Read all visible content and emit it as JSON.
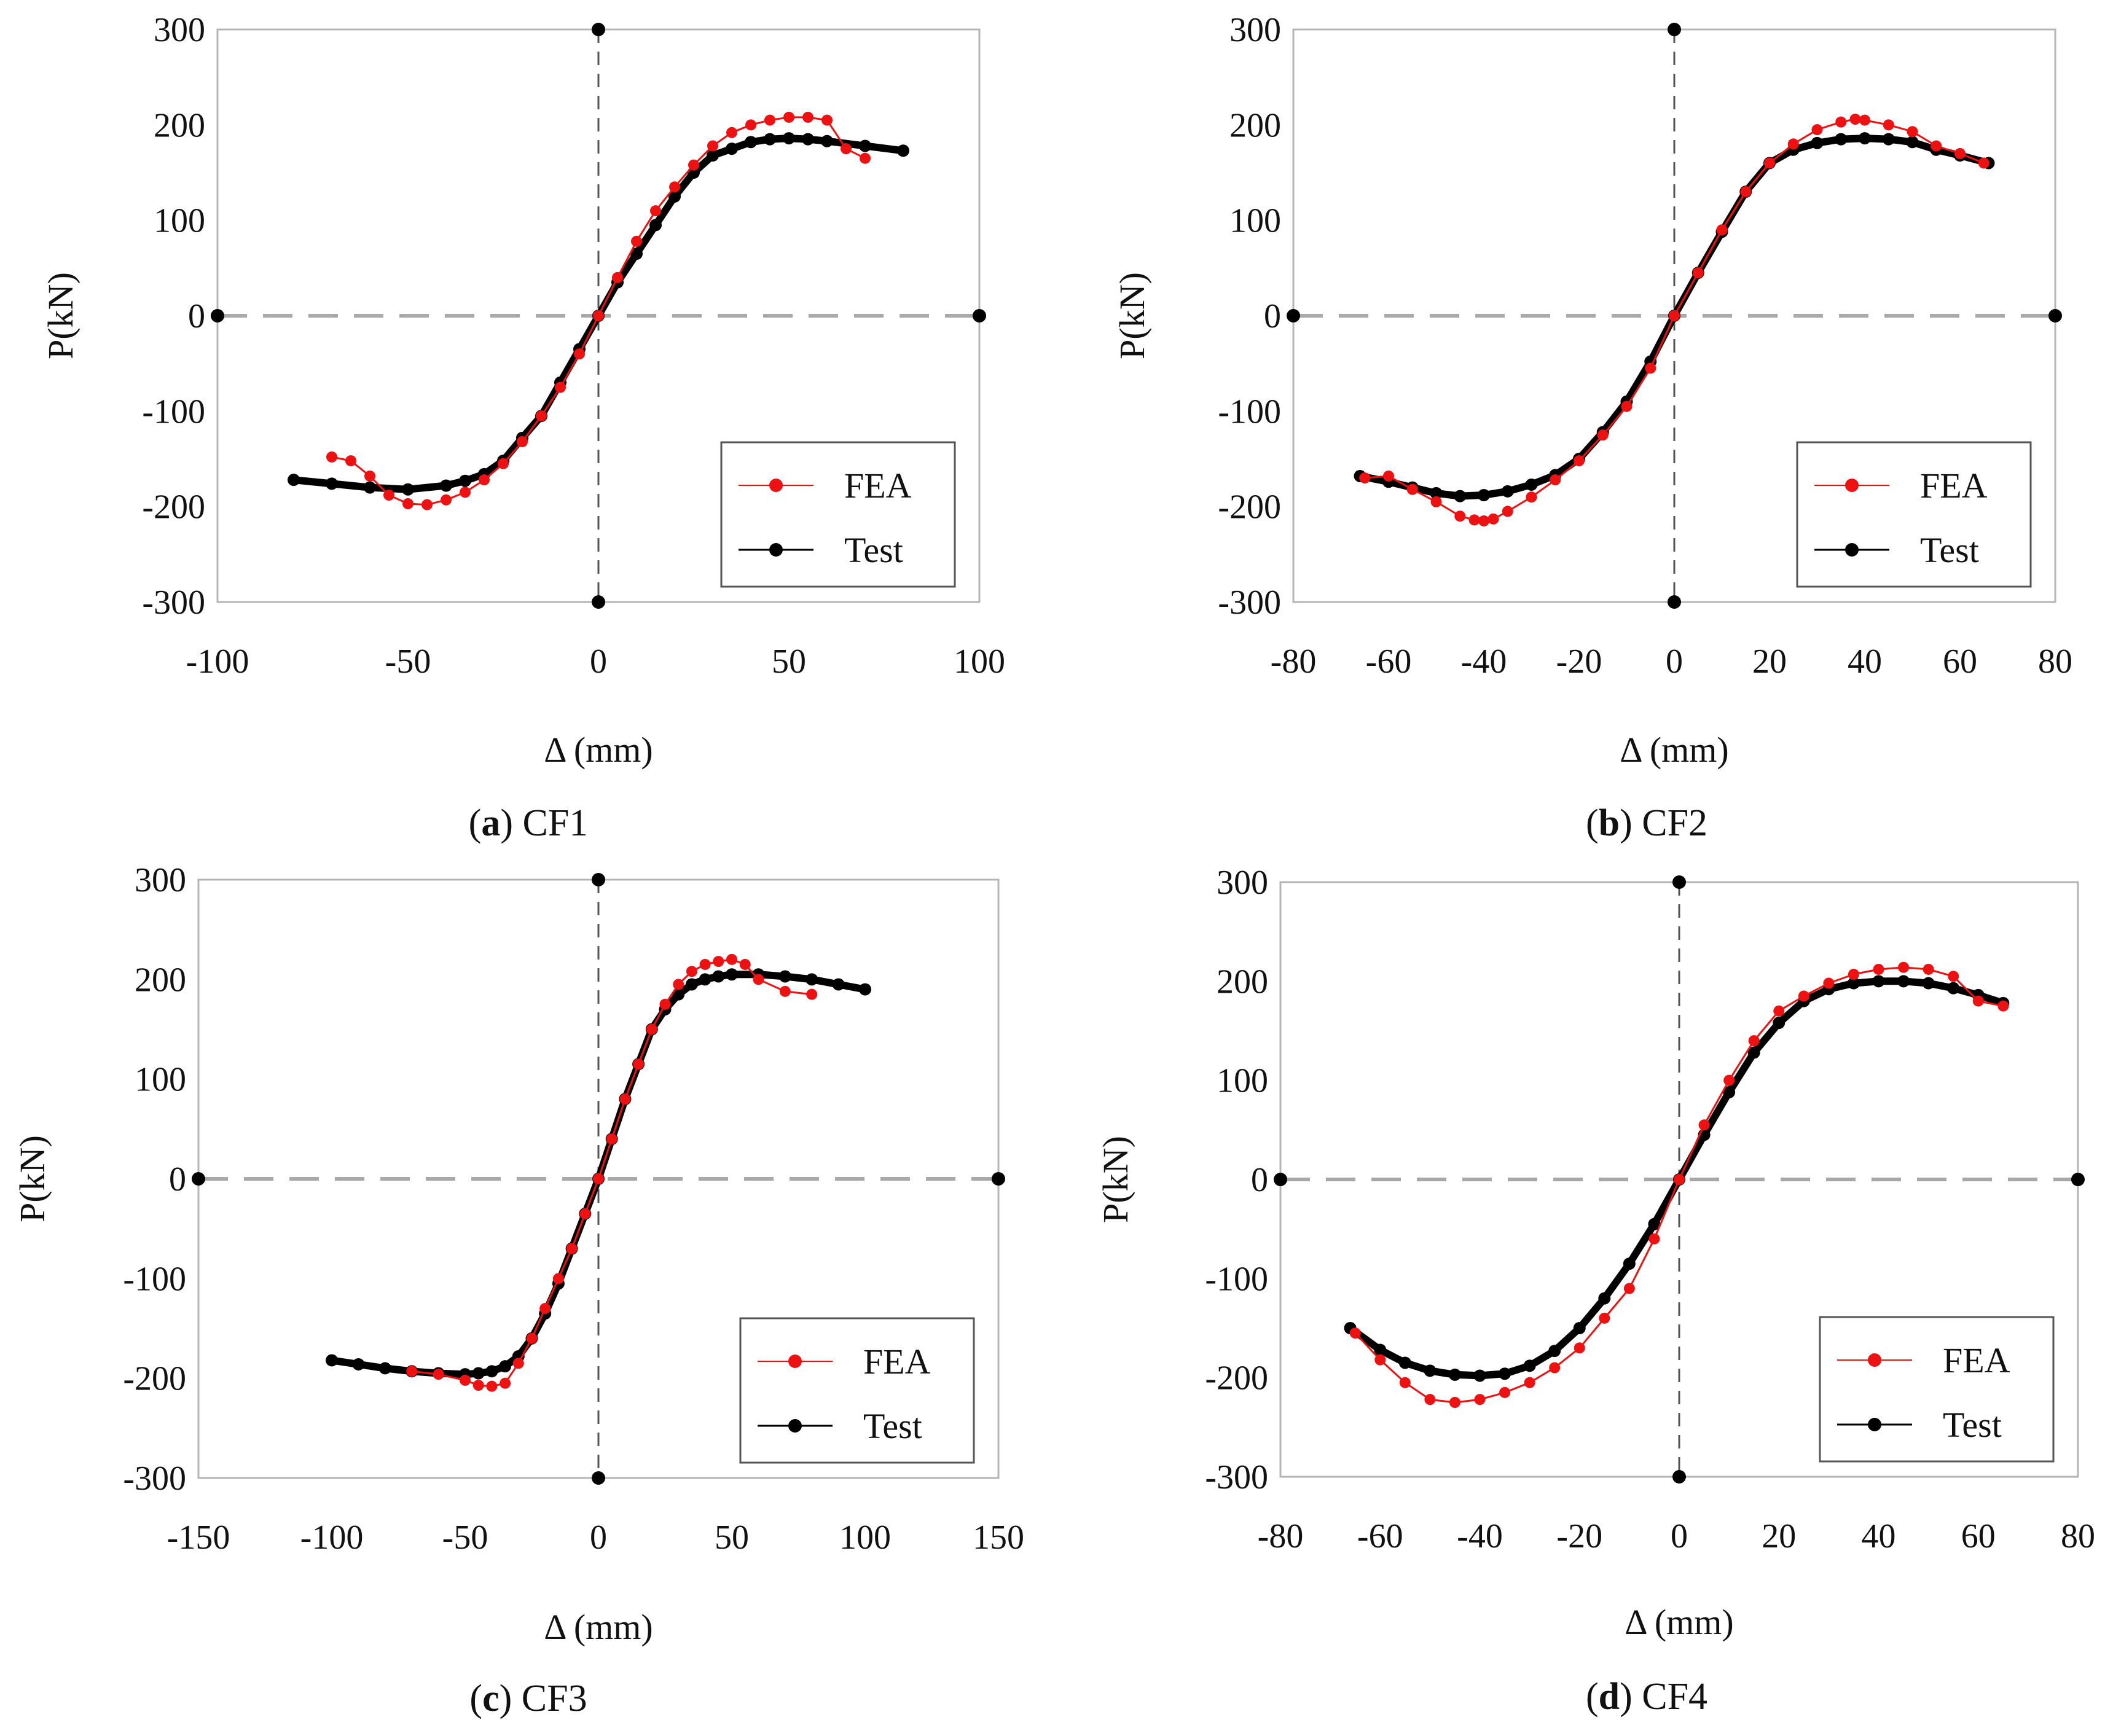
{
  "figure": {
    "style": {
      "fea_color": "#ee1111",
      "test_color": "#000000",
      "frame_color": "#b5b5b5",
      "zero_dash_color": "#a8a8a8",
      "origin_dash_color": "#555555"
    }
  },
  "chart_data": [
    {
      "type": "scatter",
      "id": "a",
      "caption_letter": "(a)",
      "caption_letter_char": "a",
      "caption_name": "CF1",
      "xlabel": "Δ (mm)",
      "ylabel": "P(kN)",
      "xlim": [
        -100,
        100
      ],
      "ylim": [
        -300,
        300
      ],
      "xticks": [
        -100,
        -50,
        0,
        50,
        100
      ],
      "yticks": [
        -300,
        -200,
        -100,
        0,
        100,
        200,
        300
      ],
      "legend": {
        "position": "bottom-right",
        "entries": [
          "FEA",
          "Test"
        ]
      },
      "series": [
        {
          "name": "FEA",
          "color": "#ee1111",
          "x": [
            -70,
            -65,
            -60,
            -55,
            -50,
            -45,
            -40,
            -35,
            -30,
            -25,
            -20,
            -15,
            -10,
            -5,
            0,
            5,
            10,
            15,
            20,
            25,
            30,
            35,
            40,
            45,
            50,
            55,
            60,
            65,
            70
          ],
          "y": [
            -148,
            -152,
            -168,
            -188,
            -197,
            -198,
            -193,
            -185,
            -172,
            -155,
            -132,
            -105,
            -75,
            -40,
            0,
            40,
            78,
            110,
            135,
            158,
            178,
            192,
            200,
            205,
            208,
            208,
            205,
            175,
            165
          ]
        },
        {
          "name": "Test",
          "color": "#000000",
          "x": [
            -80,
            -70,
            -60,
            -50,
            -40,
            -35,
            -30,
            -25,
            -20,
            -15,
            -10,
            -5,
            0,
            5,
            10,
            15,
            20,
            25,
            30,
            35,
            40,
            45,
            50,
            55,
            60,
            70,
            80
          ],
          "y": [
            -172,
            -176,
            -180,
            -182,
            -178,
            -173,
            -166,
            -152,
            -128,
            -105,
            -70,
            -35,
            0,
            35,
            65,
            95,
            125,
            150,
            168,
            175,
            182,
            185,
            186,
            185,
            183,
            178,
            173
          ]
        }
      ]
    },
    {
      "type": "scatter",
      "id": "b",
      "caption_letter": "(b)",
      "caption_letter_char": "b",
      "caption_name": "CF2",
      "xlabel": "Δ (mm)",
      "ylabel": "P(kN)",
      "xlim": [
        -80,
        80
      ],
      "ylim": [
        -300,
        300
      ],
      "xticks": [
        -80,
        -60,
        -40,
        -20,
        0,
        20,
        40,
        60,
        80
      ],
      "yticks": [
        -300,
        -200,
        -100,
        0,
        100,
        200,
        300
      ],
      "legend": {
        "position": "bottom-right",
        "entries": [
          "FEA",
          "Test"
        ]
      },
      "series": [
        {
          "name": "FEA",
          "color": "#ee1111",
          "x": [
            -65,
            -60,
            -55,
            -50,
            -45,
            -42,
            -40,
            -38,
            -35,
            -30,
            -25,
            -20,
            -15,
            -10,
            -5,
            0,
            5,
            10,
            15,
            20,
            25,
            30,
            35,
            38,
            40,
            45,
            50,
            55,
            60,
            65
          ],
          "y": [
            -170,
            -168,
            -182,
            -195,
            -210,
            -214,
            -215,
            -213,
            -205,
            -190,
            -172,
            -152,
            -125,
            -95,
            -55,
            0,
            45,
            90,
            130,
            160,
            180,
            195,
            203,
            206,
            205,
            200,
            193,
            178,
            170,
            160
          ]
        },
        {
          "name": "Test",
          "color": "#000000",
          "x": [
            -66,
            -60,
            -55,
            -50,
            -45,
            -40,
            -35,
            -30,
            -25,
            -20,
            -15,
            -10,
            -5,
            0,
            5,
            10,
            15,
            20,
            25,
            30,
            35,
            40,
            45,
            50,
            55,
            60,
            66
          ],
          "y": [
            -168,
            -174,
            -180,
            -186,
            -189,
            -188,
            -184,
            -177,
            -167,
            -150,
            -122,
            -90,
            -48,
            0,
            45,
            88,
            130,
            160,
            174,
            181,
            185,
            186,
            185,
            182,
            174,
            168,
            160
          ]
        }
      ]
    },
    {
      "type": "scatter",
      "id": "c",
      "caption_letter": "(c)",
      "caption_letter_char": "c",
      "caption_name": "CF3",
      "xlabel": "Δ (mm)",
      "ylabel": "P(kN)",
      "xlim": [
        -150,
        150
      ],
      "ylim": [
        -300,
        300
      ],
      "xticks": [
        -150,
        -100,
        -50,
        0,
        50,
        100,
        150
      ],
      "yticks": [
        -300,
        -200,
        -100,
        0,
        100,
        200,
        300
      ],
      "legend": {
        "position": "bottom-right",
        "entries": [
          "FEA",
          "Test"
        ]
      },
      "series": [
        {
          "name": "FEA",
          "color": "#ee1111",
          "x": [
            -70,
            -60,
            -50,
            -45,
            -40,
            -35,
            -30,
            -25,
            -20,
            -15,
            -10,
            -5,
            0,
            5,
            10,
            15,
            20,
            25,
            30,
            35,
            40,
            45,
            50,
            55,
            60,
            70,
            80
          ],
          "y": [
            -193,
            -196,
            -202,
            -207,
            -208,
            -205,
            -185,
            -160,
            -130,
            -100,
            -70,
            -35,
            0,
            40,
            80,
            115,
            150,
            175,
            195,
            208,
            215,
            218,
            220,
            215,
            200,
            188,
            185
          ]
        },
        {
          "name": "Test",
          "color": "#000000",
          "x": [
            -100,
            -90,
            -80,
            -70,
            -60,
            -50,
            -45,
            -40,
            -35,
            -30,
            -25,
            -20,
            -15,
            -10,
            -5,
            0,
            5,
            10,
            15,
            20,
            25,
            30,
            35,
            40,
            45,
            50,
            60,
            70,
            80,
            90,
            100
          ],
          "y": [
            -182,
            -186,
            -190,
            -193,
            -195,
            -196,
            -195,
            -193,
            -188,
            -178,
            -160,
            -135,
            -105,
            -70,
            -35,
            0,
            40,
            80,
            115,
            150,
            170,
            185,
            195,
            200,
            203,
            205,
            205,
            203,
            200,
            195,
            190
          ]
        }
      ]
    },
    {
      "type": "scatter",
      "id": "d",
      "caption_letter": "(d)",
      "caption_letter_char": "d",
      "caption_name": "CF4",
      "xlabel": "Δ (mm)",
      "ylabel": "P(kN)",
      "xlim": [
        -80,
        80
      ],
      "ylim": [
        -300,
        300
      ],
      "xticks": [
        -80,
        -60,
        -40,
        -20,
        0,
        20,
        40,
        60,
        80
      ],
      "yticks": [
        -300,
        -200,
        -100,
        0,
        100,
        200,
        300
      ],
      "legend": {
        "position": "bottom-right",
        "entries": [
          "FEA",
          "Test"
        ]
      },
      "series": [
        {
          "name": "FEA",
          "color": "#ee1111",
          "x": [
            -65,
            -60,
            -55,
            -50,
            -45,
            -40,
            -35,
            -30,
            -25,
            -20,
            -15,
            -10,
            -5,
            0,
            5,
            10,
            15,
            20,
            25,
            30,
            35,
            40,
            45,
            50,
            55,
            60,
            65
          ],
          "y": [
            -155,
            -182,
            -205,
            -222,
            -225,
            -222,
            -215,
            -205,
            -190,
            -170,
            -140,
            -110,
            -60,
            0,
            55,
            100,
            140,
            170,
            185,
            198,
            207,
            212,
            214,
            212,
            205,
            180,
            175
          ]
        },
        {
          "name": "Test",
          "color": "#000000",
          "x": [
            -66,
            -60,
            -55,
            -50,
            -45,
            -40,
            -35,
            -30,
            -25,
            -20,
            -15,
            -10,
            -5,
            0,
            5,
            10,
            15,
            20,
            25,
            30,
            35,
            40,
            45,
            50,
            55,
            60,
            65
          ],
          "y": [
            -150,
            -172,
            -185,
            -193,
            -197,
            -198,
            -196,
            -188,
            -173,
            -150,
            -120,
            -85,
            -45,
            0,
            45,
            88,
            128,
            158,
            180,
            192,
            198,
            200,
            200,
            198,
            193,
            186,
            178
          ]
        }
      ]
    }
  ]
}
